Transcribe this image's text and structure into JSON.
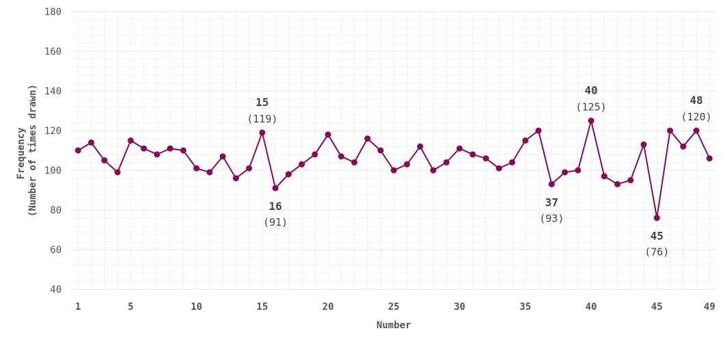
{
  "chart_data": {
    "type": "line",
    "xlabel": "Number",
    "ylabel_lines": [
      "Frequency",
      "(Number of times drawn)"
    ],
    "xlim": [
      1,
      49
    ],
    "ylim": [
      40,
      180
    ],
    "y_ticks": [
      40,
      60,
      80,
      100,
      120,
      140,
      160,
      180
    ],
    "x_ticks": [
      1,
      5,
      10,
      15,
      20,
      25,
      30,
      35,
      40,
      45,
      49
    ],
    "grid": true,
    "line_color": "#8b0a57",
    "x": [
      1,
      2,
      3,
      4,
      5,
      6,
      7,
      8,
      9,
      10,
      11,
      12,
      13,
      14,
      15,
      16,
      17,
      18,
      19,
      20,
      21,
      22,
      23,
      24,
      25,
      26,
      27,
      28,
      29,
      30,
      31,
      32,
      33,
      34,
      35,
      36,
      37,
      38,
      39,
      40,
      41,
      42,
      43,
      44,
      45,
      46,
      47,
      48,
      49
    ],
    "values": [
      110,
      114,
      105,
      99,
      115,
      111,
      108,
      111,
      110,
      101,
      99,
      107,
      96,
      101,
      119,
      91,
      98,
      103,
      108,
      118,
      107,
      104,
      116,
      110,
      100,
      103,
      112,
      100,
      104,
      111,
      108,
      106,
      101,
      104,
      115,
      120,
      93,
      99,
      100,
      125,
      97,
      93,
      95,
      113,
      76,
      120,
      112,
      120,
      106
    ],
    "annotations": [
      {
        "x": 15,
        "y": 119,
        "number": "15",
        "value": "(119)",
        "position": "above"
      },
      {
        "x": 16,
        "y": 91,
        "number": "16",
        "value": "(91)",
        "position": "below"
      },
      {
        "x": 37,
        "y": 93,
        "number": "37",
        "value": "(93)",
        "position": "below"
      },
      {
        "x": 40,
        "y": 125,
        "number": "40",
        "value": "(125)",
        "position": "above"
      },
      {
        "x": 45,
        "y": 76,
        "number": "45",
        "value": "(76)",
        "position": "below"
      },
      {
        "x": 48,
        "y": 120,
        "number": "48",
        "value": "(120)",
        "position": "above"
      }
    ]
  }
}
